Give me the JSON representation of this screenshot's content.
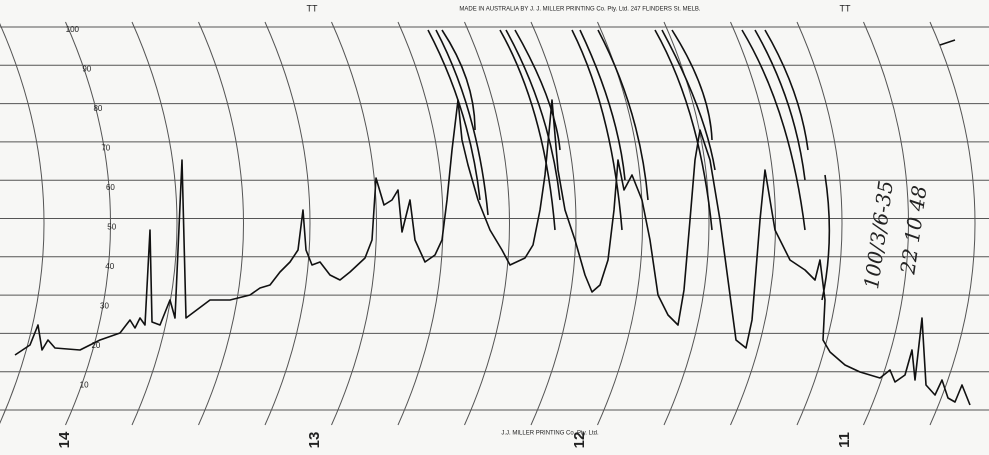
{
  "header": {
    "imprint": "MADE IN AUSTRALIA BY J. J. MILLER PRINTING Co. Pty. Ltd. 247 FLINDERS St. MELB.",
    "top_marks": [
      "TT",
      "TT"
    ]
  },
  "scale": {
    "labels": [
      "100",
      "90",
      "80",
      "70",
      "60",
      "50",
      "40",
      "30",
      "20",
      "10"
    ]
  },
  "hours": [
    "14",
    "13",
    "12",
    "11"
  ],
  "footer": {
    "imprint": "J.J. MILLER PRINTING Co. Pty. Ltd."
  },
  "annotations": {
    "chart_id": "100/3/6-35",
    "date": "22 10 48"
  }
}
